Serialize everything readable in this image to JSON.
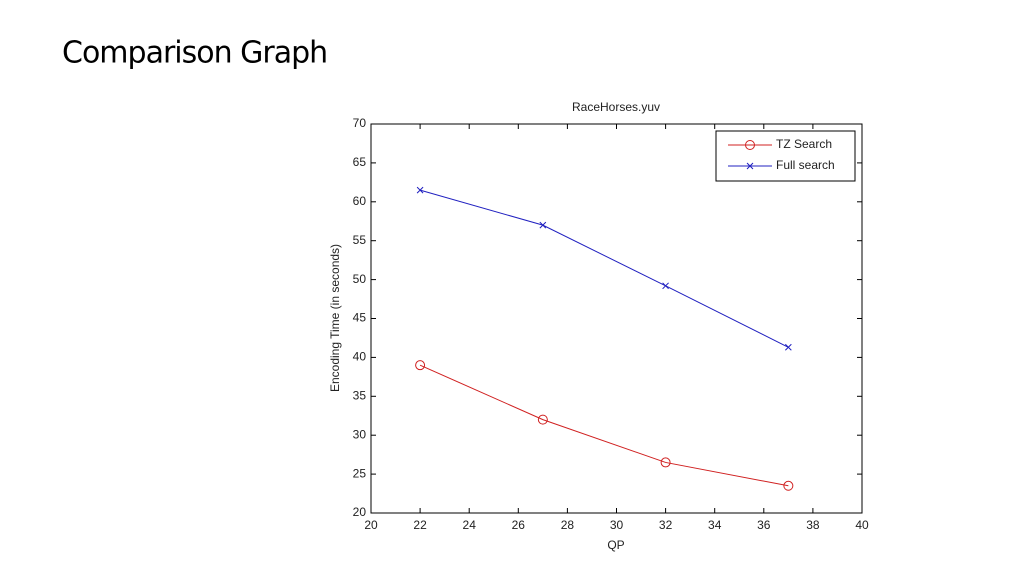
{
  "slide_title": "Comparison Graph",
  "chart_data": {
    "type": "line",
    "title": "RaceHorses.yuv",
    "x_label": "QP",
    "y_label": "Encoding Time (in seconds)",
    "x": [
      22,
      27,
      32,
      37
    ],
    "series": [
      {
        "name": "TZ Search",
        "color": "#d02020",
        "marker": "circle",
        "values": [
          39,
          32,
          26.5,
          23.5
        ]
      },
      {
        "name": "Full search",
        "color": "#2020c0",
        "marker": "x",
        "values": [
          61.5,
          57,
          49.2,
          41.3
        ]
      }
    ],
    "xlim": [
      20,
      40
    ],
    "xticks": [
      20,
      22,
      24,
      26,
      28,
      30,
      32,
      34,
      36,
      38,
      40
    ],
    "ylim": [
      20,
      70
    ],
    "yticks": [
      20,
      25,
      30,
      35,
      40,
      45,
      50,
      55,
      60,
      65,
      70
    ],
    "grid": false,
    "legend": "northeast"
  }
}
